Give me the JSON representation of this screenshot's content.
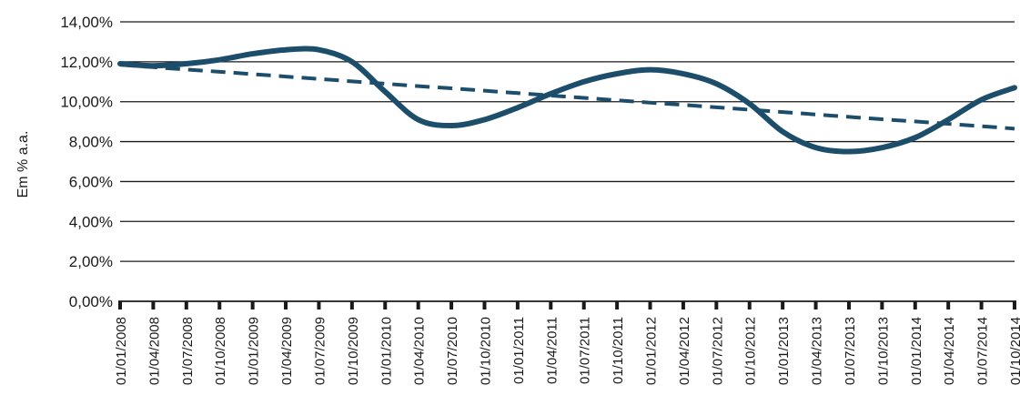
{
  "chart_data": {
    "type": "line",
    "ylabel": "Em % a.a.",
    "ylim": [
      0,
      14
    ],
    "y_ticks": [
      "0,00%",
      "2,00%",
      "4,00%",
      "6,00%",
      "8,00%",
      "10,00%",
      "12,00%",
      "14,00%"
    ],
    "categories": [
      "01/01/2008",
      "01/04/2008",
      "01/07/2008",
      "01/10/2008",
      "01/01/2009",
      "01/04/2009",
      "01/07/2009",
      "01/10/2009",
      "01/01/2010",
      "01/04/2010",
      "01/07/2010",
      "01/10/2010",
      "01/01/2011",
      "01/04/2011",
      "01/07/2011",
      "01/10/2011",
      "01/01/2012",
      "01/04/2012",
      "01/07/2012",
      "01/10/2012",
      "01/01/2013",
      "01/04/2013",
      "01/07/2013",
      "01/10/2013",
      "01/01/2014",
      "01/04/2014",
      "01/07/2014",
      "01/10/2014"
    ],
    "grid": true,
    "legend": "none",
    "series": [
      {
        "style": "solid",
        "color": "#1c4e6b",
        "values": [
          11.9,
          11.8,
          11.9,
          12.1,
          12.4,
          12.6,
          12.6,
          12.0,
          10.5,
          9.1,
          8.8,
          9.1,
          9.7,
          10.4,
          11.0,
          11.4,
          11.6,
          11.4,
          10.9,
          9.9,
          8.5,
          7.7,
          7.5,
          7.7,
          8.2,
          9.1,
          10.1,
          10.7
        ]
      },
      {
        "style": "dashed",
        "color": "#1c4e6b",
        "values": [
          11.85,
          11.73,
          11.61,
          11.5,
          11.38,
          11.26,
          11.14,
          11.02,
          10.9,
          10.78,
          10.67,
          10.55,
          10.43,
          10.31,
          10.19,
          10.07,
          9.95,
          9.84,
          9.72,
          9.6,
          9.48,
          9.36,
          9.24,
          9.12,
          9.01,
          8.89,
          8.77,
          8.65
        ]
      }
    ]
  }
}
